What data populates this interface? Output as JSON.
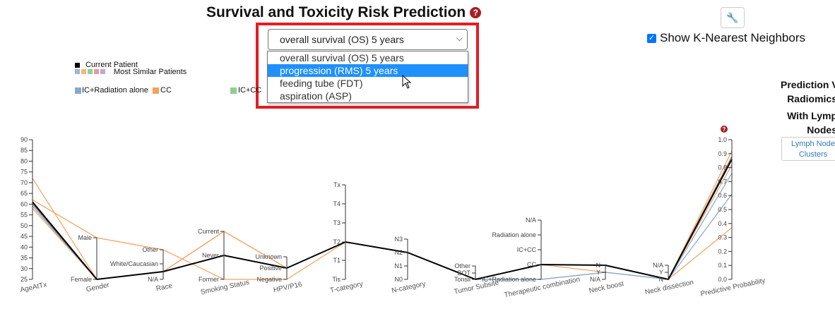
{
  "page": {
    "title": "Survival and Toxicity Risk Prediction",
    "help_icon_glyph": "?"
  },
  "outcome_select": {
    "value": "overall survival (OS) 5 years",
    "options": [
      "overall survival (OS) 5 years",
      "progression (RMS) 5 years",
      "feeding tube (FDT)",
      "aspiration (ASP)"
    ],
    "highlighted_index": 1
  },
  "toolbar": {
    "settings_icon": "wrench-icon",
    "settings_glyph": "🔧"
  },
  "knn": {
    "label": "Show K-Nearest Neighbors",
    "checked": true
  },
  "legend": {
    "current_patient": "Current Patient",
    "similar_patients": "Most Similar Patients",
    "groups": [
      "IC+Radiation alone",
      "CC",
      "IC+CC"
    ],
    "colors": {
      "current": "#000000",
      "similar": [
        "#9cb6d4",
        "#f5b77a",
        "#8fcf8f",
        "#e79a9a",
        "#c7a4d6"
      ],
      "ic_radiation": "#86a8cd",
      "cc": "#f6a05a",
      "ic_cc": "#8fcf8f"
    }
  },
  "right_panel": {
    "title_line1": "Prediction V",
    "title_line2": "Radiomics",
    "subtitle_line1": "With Lymp",
    "subtitle_line2": "Nodes",
    "button_line1": "Lymph Node",
    "button_line2": "Clusters"
  },
  "parallel_coords": {
    "axes": [
      {
        "name": "AgeAtTx",
        "ticks": [
          "25",
          "30",
          "35",
          "40",
          "45",
          "50",
          "55",
          "60",
          "65",
          "70",
          "75",
          "80",
          "85",
          "90"
        ]
      },
      {
        "name": "Gender",
        "ticks": [
          "Female",
          "Male"
        ]
      },
      {
        "name": "Race",
        "ticks": [
          "N/A",
          "White/Caucasian",
          "Other"
        ]
      },
      {
        "name": "Smoking Status",
        "ticks": [
          "Former",
          "Never",
          "Current"
        ]
      },
      {
        "name": "HPV/P16",
        "ticks": [
          "Negative",
          "Positive",
          "Unknown"
        ]
      },
      {
        "name": "T-category",
        "ticks": [
          "Tis",
          "T1",
          "T2",
          "T3",
          "T4",
          "Tx"
        ]
      },
      {
        "name": "N-category",
        "ticks": [
          "N0",
          "N1",
          "N2",
          "N3"
        ]
      },
      {
        "name": "Tumor Subsite",
        "ticks": [
          "Tonsil",
          "BOT",
          "Other"
        ]
      },
      {
        "name": "Therapeutic combination",
        "ticks": [
          "IC+Radiation alone",
          "CC",
          "IC+CC",
          "Radiation alone",
          "N/A"
        ]
      },
      {
        "name": "Neck boost",
        "ticks": [
          "N/A",
          "Y",
          "N"
        ]
      },
      {
        "name": "Neck dissection",
        "ticks": [
          "N",
          "Y",
          "N/A"
        ]
      },
      {
        "name": "Predictive Probability",
        "ticks": [
          "0.0",
          "0.1",
          "0.2",
          "0.3",
          "0.4",
          "0.5",
          "0.6",
          "0.7",
          "0.8",
          "0.9",
          "1.0"
        ]
      }
    ],
    "help_icon_glyph": "?"
  }
}
